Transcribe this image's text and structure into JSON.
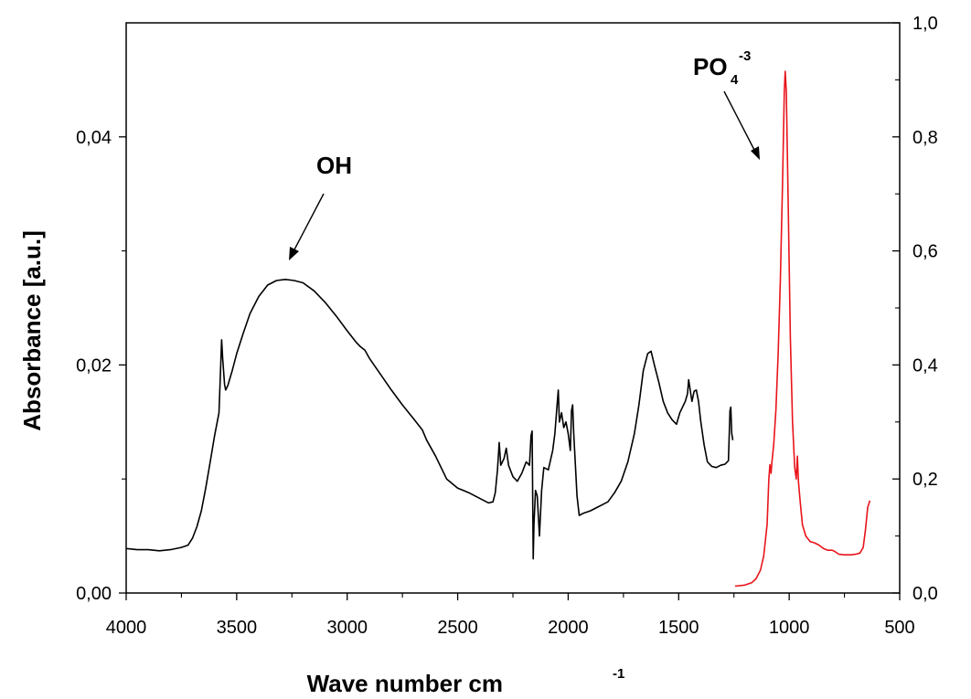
{
  "chart_data": {
    "type": "line",
    "xlabel": "Wave number cm",
    "xlabel_sup": "-1",
    "ylabel": "Absorbance [a.u.]",
    "xlim": [
      4000,
      500
    ],
    "x_reversed": true,
    "ylim": [
      0,
      0.05
    ],
    "y2lim": [
      0,
      1.0
    ],
    "x_ticks": [
      4000,
      3500,
      3000,
      2500,
      2000,
      1500,
      1000,
      500
    ],
    "x_tick_labels": [
      "4000",
      "3500",
      "3000",
      "2500",
      "2000",
      "1500",
      "1000",
      "500"
    ],
    "y_ticks": [
      0,
      0.02,
      0.04
    ],
    "y_tick_labels": [
      "0,00",
      "0,02",
      "0,04"
    ],
    "y2_ticks": [
      0,
      0.2,
      0.4,
      0.6,
      0.8,
      1.0
    ],
    "y2_tick_labels": [
      "0,0",
      "0,2",
      "0,4",
      "0,6",
      "0,8",
      "1,0"
    ],
    "grid": false,
    "series": [
      {
        "axis": "left",
        "color": "#000000",
        "points": [
          [
            4000,
            0.0039
          ],
          [
            3950,
            0.0038
          ],
          [
            3900,
            0.0038
          ],
          [
            3850,
            0.0037
          ],
          [
            3800,
            0.0038
          ],
          [
            3750,
            0.004
          ],
          [
            3720,
            0.0042
          ],
          [
            3700,
            0.0048
          ],
          [
            3680,
            0.0058
          ],
          [
            3660,
            0.0072
          ],
          [
            3640,
            0.0092
          ],
          [
            3620,
            0.0115
          ],
          [
            3600,
            0.0138
          ],
          [
            3590,
            0.0148
          ],
          [
            3580,
            0.0158
          ],
          [
            3573,
            0.0195
          ],
          [
            3568,
            0.0222
          ],
          [
            3563,
            0.0205
          ],
          [
            3555,
            0.0183
          ],
          [
            3550,
            0.0178
          ],
          [
            3540,
            0.0182
          ],
          [
            3520,
            0.0195
          ],
          [
            3500,
            0.021
          ],
          [
            3470,
            0.0228
          ],
          [
            3440,
            0.0245
          ],
          [
            3400,
            0.026
          ],
          [
            3360,
            0.027
          ],
          [
            3320,
            0.0274
          ],
          [
            3280,
            0.0275
          ],
          [
            3240,
            0.0274
          ],
          [
            3200,
            0.0272
          ],
          [
            3150,
            0.0265
          ],
          [
            3100,
            0.0255
          ],
          [
            3050,
            0.0243
          ],
          [
            3000,
            0.023
          ],
          [
            2960,
            0.022
          ],
          [
            2940,
            0.0216
          ],
          [
            2920,
            0.0213
          ],
          [
            2900,
            0.0206
          ],
          [
            2850,
            0.0192
          ],
          [
            2800,
            0.0178
          ],
          [
            2750,
            0.0165
          ],
          [
            2700,
            0.0153
          ],
          [
            2660,
            0.0143
          ],
          [
            2640,
            0.0134
          ],
          [
            2600,
            0.012
          ],
          [
            2550,
            0.01
          ],
          [
            2500,
            0.0092
          ],
          [
            2450,
            0.0088
          ],
          [
            2400,
            0.0083
          ],
          [
            2360,
            0.0079
          ],
          [
            2340,
            0.008
          ],
          [
            2330,
            0.0088
          ],
          [
            2320,
            0.0108
          ],
          [
            2312,
            0.0132
          ],
          [
            2305,
            0.0112
          ],
          [
            2290,
            0.0118
          ],
          [
            2280,
            0.0127
          ],
          [
            2270,
            0.0112
          ],
          [
            2250,
            0.0102
          ],
          [
            2230,
            0.0098
          ],
          [
            2210,
            0.0105
          ],
          [
            2190,
            0.0115
          ],
          [
            2175,
            0.0112
          ],
          [
            2168,
            0.0138
          ],
          [
            2163,
            0.0142
          ],
          [
            2158,
            0.003
          ],
          [
            2155,
            0.006
          ],
          [
            2148,
            0.009
          ],
          [
            2140,
            0.0085
          ],
          [
            2130,
            0.005
          ],
          [
            2120,
            0.009
          ],
          [
            2110,
            0.011
          ],
          [
            2090,
            0.0108
          ],
          [
            2070,
            0.0125
          ],
          [
            2060,
            0.014
          ],
          [
            2050,
            0.0165
          ],
          [
            2045,
            0.0178
          ],
          [
            2040,
            0.015
          ],
          [
            2030,
            0.0158
          ],
          [
            2020,
            0.0145
          ],
          [
            2010,
            0.015
          ],
          [
            2000,
            0.014
          ],
          [
            1990,
            0.0125
          ],
          [
            1985,
            0.016
          ],
          [
            1980,
            0.0165
          ],
          [
            1975,
            0.014
          ],
          [
            1960,
            0.0085
          ],
          [
            1950,
            0.0068
          ],
          [
            1930,
            0.007
          ],
          [
            1900,
            0.0072
          ],
          [
            1870,
            0.0075
          ],
          [
            1850,
            0.0077
          ],
          [
            1820,
            0.008
          ],
          [
            1790,
            0.0088
          ],
          [
            1760,
            0.0098
          ],
          [
            1730,
            0.0115
          ],
          [
            1700,
            0.014
          ],
          [
            1680,
            0.0165
          ],
          [
            1660,
            0.0195
          ],
          [
            1640,
            0.021
          ],
          [
            1625,
            0.0212
          ],
          [
            1610,
            0.02
          ],
          [
            1590,
            0.0185
          ],
          [
            1570,
            0.0168
          ],
          [
            1550,
            0.0158
          ],
          [
            1530,
            0.0152
          ],
          [
            1510,
            0.0148
          ],
          [
            1495,
            0.0158
          ],
          [
            1480,
            0.0164
          ],
          [
            1470,
            0.0168
          ],
          [
            1460,
            0.0175
          ],
          [
            1455,
            0.0187
          ],
          [
            1448,
            0.0178
          ],
          [
            1440,
            0.0168
          ],
          [
            1430,
            0.0177
          ],
          [
            1420,
            0.0178
          ],
          [
            1410,
            0.0168
          ],
          [
            1400,
            0.015
          ],
          [
            1385,
            0.013
          ],
          [
            1370,
            0.0115
          ],
          [
            1350,
            0.0111
          ],
          [
            1330,
            0.011
          ],
          [
            1310,
            0.0112
          ],
          [
            1290,
            0.0113
          ],
          [
            1275,
            0.0116
          ],
          [
            1268,
            0.016
          ],
          [
            1264,
            0.0163
          ],
          [
            1260,
            0.014
          ],
          [
            1255,
            0.0134
          ]
        ]
      },
      {
        "axis": "right",
        "color": "#e8141a",
        "points": [
          [
            1245,
            0.012
          ],
          [
            1200,
            0.014
          ],
          [
            1170,
            0.018
          ],
          [
            1150,
            0.025
          ],
          [
            1130,
            0.04
          ],
          [
            1115,
            0.065
          ],
          [
            1100,
            0.12
          ],
          [
            1092,
            0.2
          ],
          [
            1087,
            0.225
          ],
          [
            1082,
            0.21
          ],
          [
            1078,
            0.23
          ],
          [
            1070,
            0.26
          ],
          [
            1060,
            0.32
          ],
          [
            1050,
            0.42
          ],
          [
            1040,
            0.55
          ],
          [
            1030,
            0.72
          ],
          [
            1022,
            0.88
          ],
          [
            1018,
            0.915
          ],
          [
            1013,
            0.88
          ],
          [
            1005,
            0.7
          ],
          [
            995,
            0.45
          ],
          [
            985,
            0.3
          ],
          [
            975,
            0.22
          ],
          [
            968,
            0.2
          ],
          [
            963,
            0.24
          ],
          [
            958,
            0.195
          ],
          [
            950,
            0.16
          ],
          [
            940,
            0.12
          ],
          [
            925,
            0.1
          ],
          [
            905,
            0.09
          ],
          [
            885,
            0.088
          ],
          [
            865,
            0.084
          ],
          [
            845,
            0.078
          ],
          [
            825,
            0.075
          ],
          [
            805,
            0.075
          ],
          [
            790,
            0.072
          ],
          [
            775,
            0.068
          ],
          [
            750,
            0.067
          ],
          [
            720,
            0.067
          ],
          [
            700,
            0.068
          ],
          [
            680,
            0.07
          ],
          [
            665,
            0.08
          ],
          [
            655,
            0.11
          ],
          [
            645,
            0.15
          ],
          [
            635,
            0.162
          ]
        ]
      }
    ],
    "annotations": [
      {
        "id": "oh",
        "text": "OH",
        "sup": "",
        "sub": ""
      },
      {
        "id": "po4",
        "text": "PO",
        "sub": "4",
        "sup": "-3"
      }
    ]
  }
}
